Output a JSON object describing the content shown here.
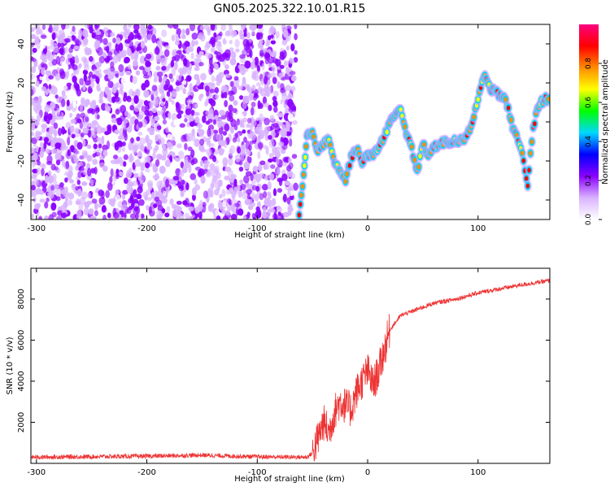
{
  "title": "GN05.2025.322.10.01.R15",
  "chart_data": [
    {
      "type": "heatmap",
      "xlabel": "Height of straight line (km)",
      "ylabel": "Frequency (Hz)",
      "xlim": [
        -305,
        165
      ],
      "ylim": [
        -50,
        50
      ],
      "x_ticks": [
        -300,
        -200,
        -100,
        0,
        100
      ],
      "y_ticks": [
        -40,
        -20,
        0,
        20,
        40
      ],
      "colorbar": {
        "label": "Normalized spectral amplitude",
        "range": [
          0,
          1
        ],
        "ticks": [
          "0.0",
          "0.2",
          "0.4",
          "0.6",
          "0.8"
        ],
        "colors": [
          "#ffffff",
          "#d9b3ff",
          "#8a00ff",
          "#0000ff",
          "#00d8ff",
          "#00ff00",
          "#ffff00",
          "#ff8c00",
          "#ff0000",
          "#ff0080"
        ]
      },
      "noise_region": {
        "x_range": [
          -305,
          -65
        ],
        "amplitude": [
          0.05,
          0.25
        ]
      },
      "signal_track": {
        "x": [
          -62,
          -58,
          -55,
          -50,
          -45,
          -40,
          -35,
          -30,
          -25,
          -20,
          -15,
          -10,
          -5,
          0,
          5,
          10,
          15,
          20,
          25,
          30,
          35,
          40,
          45,
          50,
          55,
          60,
          65,
          70,
          75,
          80,
          85,
          90,
          95,
          100,
          105,
          110,
          115,
          120,
          125,
          130,
          135,
          140,
          145,
          150,
          155,
          160,
          165
        ],
        "y": [
          -48,
          -28,
          -8,
          -5,
          -15,
          -12,
          -8,
          -20,
          -25,
          -30,
          -18,
          -14,
          -20,
          -17,
          -18,
          -12,
          -8,
          0,
          3,
          6,
          -5,
          -14,
          -25,
          -12,
          -16,
          -13,
          -12,
          -10,
          -12,
          -9,
          -10,
          -6,
          0,
          12,
          24,
          18,
          16,
          14,
          12,
          0,
          -8,
          -16,
          -32,
          -2,
          8,
          12,
          10
        ],
        "amplitude": 0.9
      }
    },
    {
      "type": "line",
      "xlabel": "Height of straight line (km)",
      "ylabel": "SNR (10 * v/v)",
      "xlim": [
        -305,
        165
      ],
      "ylim": [
        0,
        9500
      ],
      "x_ticks": [
        -300,
        -200,
        -100,
        0,
        100
      ],
      "y_ticks": [
        2000,
        4000,
        6000,
        8000
      ],
      "color": "#ee3333",
      "envelope": {
        "x": [
          -305,
          -200,
          -150,
          -100,
          -55,
          -50,
          -45,
          -40,
          -35,
          -30,
          -25,
          -20,
          -15,
          -10,
          -5,
          0,
          5,
          10,
          15,
          20,
          30,
          40,
          50,
          60,
          80,
          100,
          120,
          140,
          165
        ],
        "y": [
          300,
          350,
          400,
          320,
          300,
          500,
          1200,
          2000,
          1500,
          2500,
          3000,
          2800,
          2600,
          3500,
          4000,
          4500,
          3800,
          4500,
          5500,
          6500,
          7200,
          7400,
          7600,
          7800,
          8000,
          8300,
          8500,
          8700,
          8900
        ]
      }
    }
  ]
}
